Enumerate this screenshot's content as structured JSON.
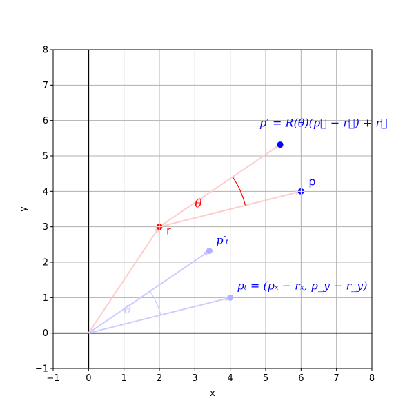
{
  "chart_data": {
    "type": "scatter",
    "title": "",
    "xlabel": "x",
    "ylabel": "y",
    "xlim": [
      -1,
      8
    ],
    "ylim": [
      -1,
      8
    ],
    "x_ticks": [
      "−1",
      "0",
      "1",
      "2",
      "3",
      "4",
      "5",
      "6",
      "7",
      "8"
    ],
    "y_ticks": [
      "−1",
      "0",
      "1",
      "2",
      "3",
      "4",
      "5",
      "6",
      "7",
      "8"
    ],
    "grid": true,
    "legend": "none",
    "colors": {
      "strong_red": "#ff0000",
      "strong_blue": "#0000ff",
      "faint_red": "#ffcccc",
      "faint_blue": "#ccccff",
      "faint_blue_point": "#b3b3ff"
    },
    "points": [
      {
        "name": "p",
        "x": 6,
        "y": 4,
        "color": "#0000ff",
        "label": "p"
      },
      {
        "name": "r",
        "x": 2,
        "y": 3,
        "color": "#ff0000",
        "label": "r"
      },
      {
        "name": "p_prime",
        "x": 5.41,
        "y": 5.32,
        "color": "#0000ff",
        "label": "p′ = R(θ)(p⃗ − r⃗) + r⃗"
      },
      {
        "name": "p_t",
        "x": 4,
        "y": 1,
        "color": "#b3b3ff",
        "label": "pₜ = (pₓ − rₓ, p_y − r_y)"
      },
      {
        "name": "p_t_prime",
        "x": 3.41,
        "y": 2.32,
        "color": "#b3b3ff",
        "label": "p′ₜ"
      }
    ],
    "vectors": [
      {
        "name": "r-to-p",
        "from": [
          2,
          3
        ],
        "to": [
          6,
          4
        ],
        "color": "#ffcccc"
      },
      {
        "name": "r-to-p-prime",
        "from": [
          2,
          3
        ],
        "to": [
          5.41,
          5.32
        ],
        "color": "#ffcccc"
      },
      {
        "name": "origin-to-r",
        "from": [
          0,
          0
        ],
        "to": [
          2,
          3
        ],
        "color": "#ffcccc"
      },
      {
        "name": "origin-to-pt",
        "from": [
          0,
          0
        ],
        "to": [
          4,
          1
        ],
        "color": "#ccccff"
      },
      {
        "name": "origin-to-pt-prime",
        "from": [
          0,
          0
        ],
        "to": [
          3.41,
          2.32
        ],
        "color": "#ccccff"
      }
    ],
    "angle_annotations": [
      {
        "name": "theta-at-r",
        "center": [
          2,
          3
        ],
        "radius": 2.5,
        "start_deg": 14.04,
        "end_deg": 34.24,
        "color": "#ff0000",
        "label": "θ",
        "label_pos": [
          3.1,
          3.55
        ]
      },
      {
        "name": "theta-at-origin",
        "center": [
          0,
          0
        ],
        "radius": 2.1,
        "start_deg": 14.04,
        "end_deg": 34.24,
        "color": "#ccccff",
        "label": "θ",
        "label_pos": [
          1.1,
          0.55
        ]
      }
    ]
  }
}
